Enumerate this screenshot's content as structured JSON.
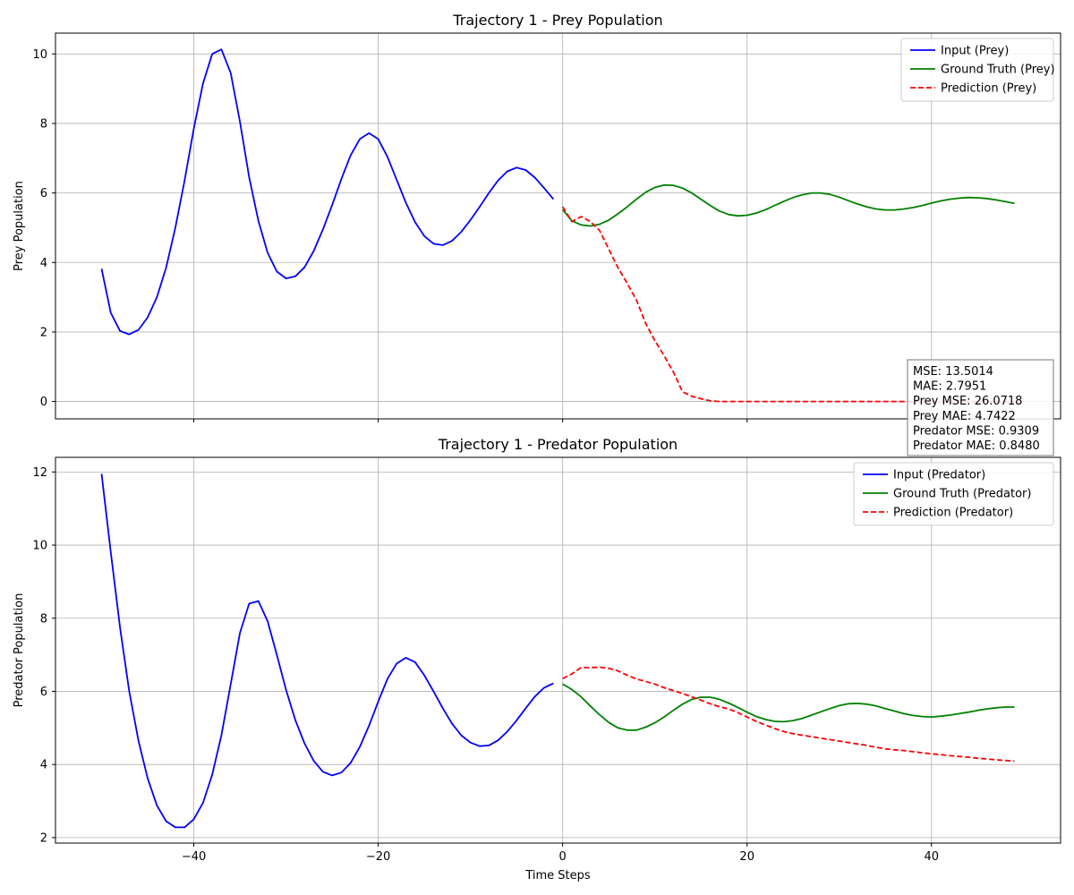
{
  "chart_data": [
    {
      "type": "line",
      "title": "Trajectory 1 - Prey Population",
      "xlabel": "",
      "ylabel": "Prey Population",
      "xlim": [
        -55,
        54
      ],
      "ylim": [
        -0.5,
        10.6
      ],
      "xticks": [
        -40,
        -20,
        0,
        20,
        40
      ],
      "yticks": [
        0,
        2,
        4,
        6,
        8,
        10
      ],
      "tick_labels_x": false,
      "grid": true,
      "legend": "top-right",
      "series": [
        {
          "name": "Input (Prey)",
          "color": "#0000ff",
          "dash": "solid",
          "x": [
            -50,
            -49,
            -48,
            -47,
            -46,
            -45,
            -44,
            -43,
            -42,
            -41,
            -40,
            -39,
            -38,
            -37,
            -36,
            -35,
            -34,
            -33,
            -32,
            -31,
            -30,
            -29,
            -28,
            -27,
            -26,
            -25,
            -24,
            -23,
            -22,
            -21,
            -20,
            -19,
            -18,
            -17,
            -16,
            -15,
            -14,
            -13,
            -12,
            -11,
            -10,
            -9,
            -8,
            -7,
            -6,
            -5,
            -4,
            -3,
            -2,
            -1
          ],
          "y": [
            3.82,
            2.55,
            2.03,
            1.93,
            2.06,
            2.42,
            3.0,
            3.85,
            5.0,
            6.35,
            7.85,
            9.15,
            10.0,
            10.13,
            9.45,
            8.05,
            6.45,
            5.2,
            4.28,
            3.74,
            3.54,
            3.6,
            3.86,
            4.33,
            4.95,
            5.65,
            6.4,
            7.08,
            7.55,
            7.72,
            7.55,
            7.04,
            6.38,
            5.72,
            5.16,
            4.76,
            4.54,
            4.5,
            4.62,
            4.88,
            5.22,
            5.6,
            6.0,
            6.36,
            6.62,
            6.73,
            6.66,
            6.44,
            6.14,
            5.82
          ]
        },
        {
          "name": "Ground Truth (Prey)",
          "color": "#008000",
          "dash": "solid",
          "x": [
            0,
            1,
            2,
            3,
            4,
            5,
            6,
            7,
            8,
            9,
            10,
            11,
            12,
            13,
            14,
            15,
            16,
            17,
            18,
            19,
            20,
            21,
            22,
            23,
            24,
            25,
            26,
            27,
            28,
            29,
            30,
            31,
            32,
            33,
            34,
            35,
            36,
            37,
            38,
            39,
            40,
            41,
            42,
            43,
            44,
            45,
            46,
            47,
            48,
            49
          ],
          "y": [
            5.52,
            5.2,
            5.08,
            5.05,
            5.1,
            5.22,
            5.4,
            5.6,
            5.82,
            6.02,
            6.16,
            6.23,
            6.22,
            6.14,
            6.0,
            5.82,
            5.64,
            5.48,
            5.38,
            5.34,
            5.36,
            5.42,
            5.52,
            5.64,
            5.76,
            5.87,
            5.95,
            6.0,
            6.0,
            5.96,
            5.88,
            5.78,
            5.68,
            5.6,
            5.54,
            5.51,
            5.51,
            5.54,
            5.58,
            5.64,
            5.71,
            5.77,
            5.82,
            5.85,
            5.87,
            5.86,
            5.84,
            5.8,
            5.75,
            5.7
          ]
        },
        {
          "name": "Prediction (Prey)",
          "color": "#ff0000",
          "dash": "dashed",
          "x": [
            0,
            1,
            2,
            3,
            4,
            5,
            6,
            7,
            8,
            9,
            10,
            11,
            12,
            13,
            14,
            15,
            16,
            17,
            18,
            19,
            20,
            21,
            22,
            23,
            24,
            25,
            26,
            27,
            28,
            29,
            30,
            31,
            32,
            33,
            34,
            35,
            36,
            37,
            38,
            39,
            40,
            41,
            42,
            43,
            44,
            45,
            46,
            47,
            48,
            49
          ],
          "y": [
            5.6,
            5.18,
            5.32,
            5.18,
            4.92,
            4.38,
            3.85,
            3.4,
            2.92,
            2.25,
            1.75,
            1.32,
            0.85,
            0.28,
            0.15,
            0.08,
            0.02,
            0,
            0,
            0,
            0,
            0,
            0,
            0,
            0,
            0,
            0,
            0,
            0,
            0,
            0,
            0,
            0,
            0,
            0,
            0,
            0,
            0,
            0,
            0,
            0,
            0,
            0,
            0,
            0,
            0,
            0,
            0,
            0,
            0
          ]
        }
      ],
      "annotation": [
        "MSE: 13.5014",
        "MAE: 2.7951",
        "Prey MSE: 26.0718",
        "Prey MAE: 4.7422",
        "Predator MSE: 0.9309",
        "Predator MAE: 0.8480"
      ]
    },
    {
      "type": "line",
      "title": "Trajectory 1 - Predator Population",
      "xlabel": "Time Steps",
      "ylabel": "Predator Population",
      "xlim": [
        -55,
        54
      ],
      "ylim": [
        1.85,
        12.4
      ],
      "xticks": [
        -40,
        -20,
        0,
        20,
        40
      ],
      "yticks": [
        2,
        4,
        6,
        8,
        10,
        12
      ],
      "tick_labels_x": true,
      "grid": true,
      "legend": "top-right",
      "series": [
        {
          "name": "Input (Predator)",
          "color": "#0000ff",
          "dash": "solid",
          "x": [
            -50,
            -49,
            -48,
            -47,
            -46,
            -45,
            -44,
            -43,
            -42,
            -41,
            -40,
            -39,
            -38,
            -37,
            -36,
            -35,
            -34,
            -33,
            -32,
            -31,
            -30,
            -29,
            -28,
            -27,
            -26,
            -25,
            -24,
            -23,
            -22,
            -21,
            -20,
            -19,
            -18,
            -17,
            -16,
            -15,
            -14,
            -13,
            -12,
            -11,
            -10,
            -9,
            -8,
            -7,
            -6,
            -5,
            -4,
            -3,
            -2,
            -1
          ],
          "y": [
            11.95,
            9.8,
            7.75,
            6.0,
            4.65,
            3.62,
            2.88,
            2.45,
            2.28,
            2.28,
            2.5,
            2.95,
            3.72,
            4.8,
            6.2,
            7.6,
            8.4,
            8.47,
            7.92,
            7.0,
            6.04,
            5.22,
            4.58,
            4.1,
            3.8,
            3.7,
            3.78,
            4.04,
            4.48,
            5.06,
            5.72,
            6.34,
            6.76,
            6.92,
            6.8,
            6.44,
            6.0,
            5.54,
            5.12,
            4.8,
            4.6,
            4.5,
            4.52,
            4.66,
            4.9,
            5.2,
            5.54,
            5.86,
            6.1,
            6.22
          ]
        },
        {
          "name": "Ground Truth (Predator)",
          "color": "#008000",
          "dash": "solid",
          "x": [
            0,
            1,
            2,
            3,
            4,
            5,
            6,
            7,
            8,
            9,
            10,
            11,
            12,
            13,
            14,
            15,
            16,
            17,
            18,
            19,
            20,
            21,
            22,
            23,
            24,
            25,
            26,
            27,
            28,
            29,
            30,
            31,
            32,
            33,
            34,
            35,
            36,
            37,
            38,
            39,
            40,
            41,
            42,
            43,
            44,
            45,
            46,
            47,
            48,
            49
          ],
          "y": [
            6.2,
            6.05,
            5.85,
            5.6,
            5.36,
            5.15,
            5.0,
            4.94,
            4.94,
            5.02,
            5.14,
            5.3,
            5.48,
            5.65,
            5.78,
            5.84,
            5.84,
            5.78,
            5.68,
            5.56,
            5.43,
            5.31,
            5.23,
            5.18,
            5.17,
            5.2,
            5.26,
            5.35,
            5.44,
            5.53,
            5.61,
            5.66,
            5.67,
            5.65,
            5.6,
            5.53,
            5.46,
            5.39,
            5.34,
            5.31,
            5.3,
            5.32,
            5.35,
            5.39,
            5.43,
            5.48,
            5.52,
            5.55,
            5.57,
            5.57
          ]
        },
        {
          "name": "Prediction (Predator)",
          "color": "#ff0000",
          "dash": "dashed",
          "x": [
            0,
            1,
            2,
            3,
            4,
            5,
            6,
            7,
            8,
            9,
            10,
            11,
            12,
            13,
            14,
            15,
            16,
            17,
            18,
            19,
            20,
            21,
            22,
            23,
            24,
            25,
            26,
            27,
            28,
            29,
            30,
            31,
            32,
            33,
            34,
            35,
            36,
            37,
            38,
            39,
            40,
            41,
            42,
            43,
            44,
            45,
            46,
            47,
            48,
            49
          ],
          "y": [
            6.35,
            6.48,
            6.65,
            6.65,
            6.66,
            6.63,
            6.56,
            6.44,
            6.34,
            6.27,
            6.2,
            6.1,
            6.02,
            5.94,
            5.85,
            5.76,
            5.66,
            5.58,
            5.52,
            5.42,
            5.3,
            5.18,
            5.08,
            4.98,
            4.9,
            4.84,
            4.8,
            4.76,
            4.72,
            4.68,
            4.64,
            4.6,
            4.56,
            4.52,
            4.47,
            4.43,
            4.4,
            4.38,
            4.35,
            4.32,
            4.29,
            4.27,
            4.24,
            4.22,
            4.2,
            4.17,
            4.15,
            4.13,
            4.11,
            4.09
          ]
        }
      ]
    }
  ]
}
